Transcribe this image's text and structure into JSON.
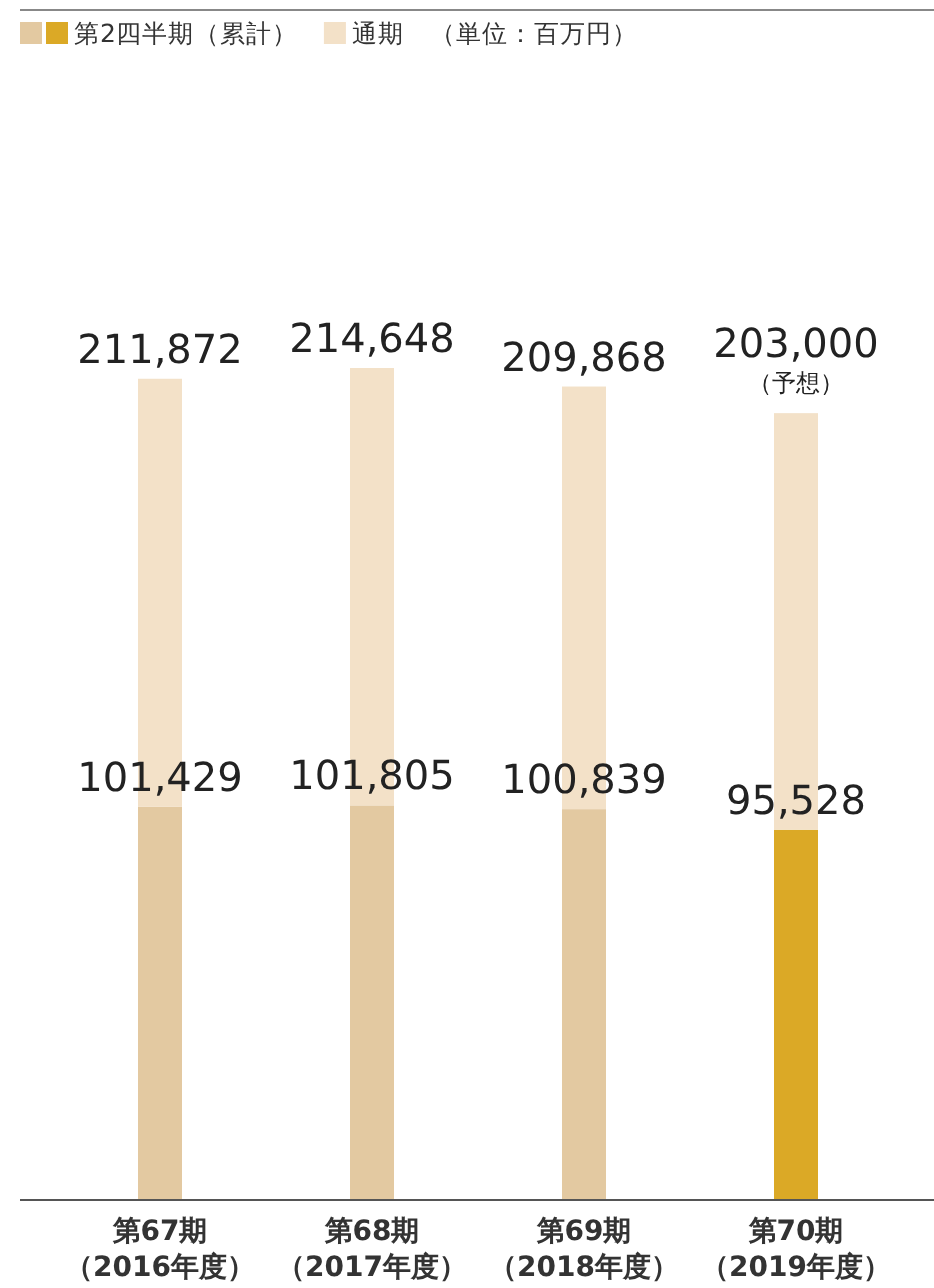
{
  "chart_data": {
    "type": "bar",
    "stacked": true,
    "categories": [
      "第67期（2016年度）",
      "第68期（2017年度）",
      "第69期（2018年度）",
      "第70期（2019年度）"
    ],
    "series": [
      {
        "name": "第2四半期（累計）",
        "color": "#e3c9a1",
        "colors": [
          "#e3c9a1",
          "#e3c9a1",
          "#e3c9a1",
          "#dba926"
        ],
        "values": [
          101429,
          101805,
          100839,
          95528
        ],
        "value_labels": [
          "101,429",
          "101,805",
          "100,839",
          "95,528"
        ]
      },
      {
        "name": "通期",
        "color": "#f3e1c8",
        "values": [
          110443,
          112843,
          109029,
          107472
        ]
      }
    ],
    "totals": [
      "211,872",
      "214,648",
      "209,868",
      "203,000"
    ],
    "legend": "top left",
    "annotations": [
      "（単位：百万円）",
      {
        "text": "（予想）",
        "x": "第70期（2019年度）",
        "y": 203000
      }
    ]
  }
}
